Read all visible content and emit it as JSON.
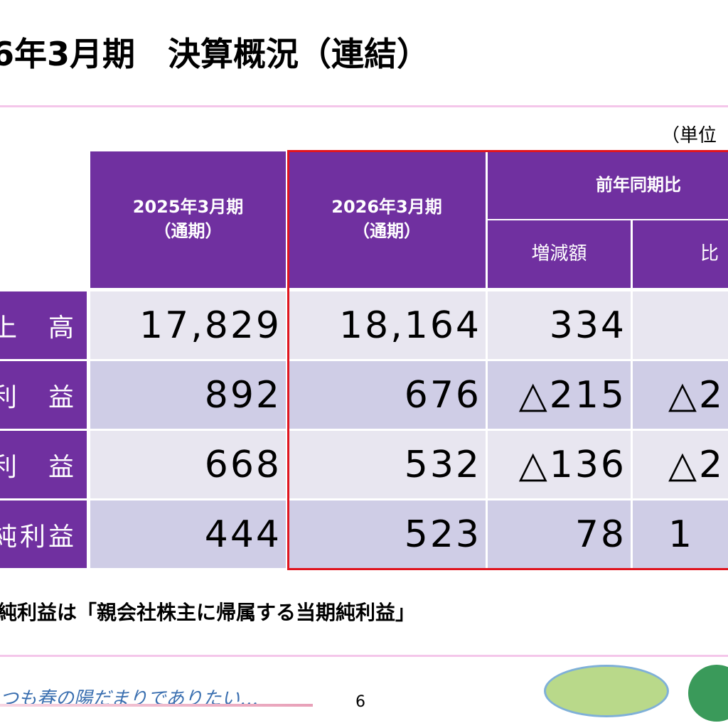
{
  "header": {
    "title": "6年3月期　決算概況（連結）",
    "unit": "（単位"
  },
  "table": {
    "head": {
      "col1": [
        "2025年3月期",
        "（通期）"
      ],
      "col2": [
        "2026年3月期",
        "（通期）"
      ],
      "group": "前年同期比",
      "sub1": "増減額",
      "sub2": "比"
    },
    "rows": [
      [
        "上　高",
        "17,829",
        "18,164",
        "334",
        ""
      ],
      [
        "利　益",
        "892",
        "676",
        "△215",
        "△2"
      ],
      [
        "利　益",
        "668",
        "532",
        "△136",
        "△2"
      ],
      [
        "純利益",
        "444",
        "523",
        "78",
        "1"
      ]
    ]
  },
  "footnote": "純利益は「親会社株主に帰属する当期純利益」",
  "footer": {
    "tagline": "つも春の陽だまりでありたい…",
    "page": "6"
  }
}
